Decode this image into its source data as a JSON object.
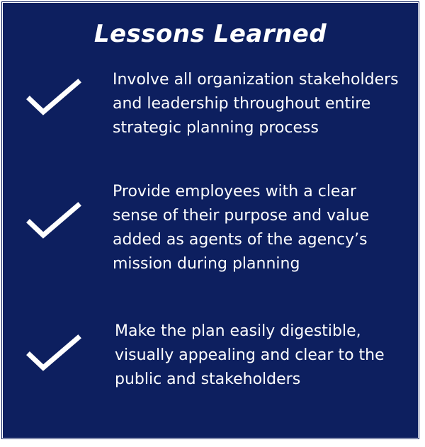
{
  "title": "Lessons Learned",
  "items": [
    {
      "icon": "checkmark-icon",
      "text": "Involve all organization stakeholders\nand leadership throughout entire\nstrategic planning process"
    },
    {
      "icon": "checkmark-icon",
      "text": "Provide employees with a clear\nsense of their purpose and value\nadded as agents of the agency’s\nmission during planning"
    },
    {
      "icon": "checkmark-icon",
      "text": "Make the plan easily digestible,\nvisually appealing and clear to the\npublic and stakeholders"
    }
  ],
  "colors": {
    "background": "#0d1f5f",
    "text": "#ffffff",
    "border": "#ffffff"
  }
}
